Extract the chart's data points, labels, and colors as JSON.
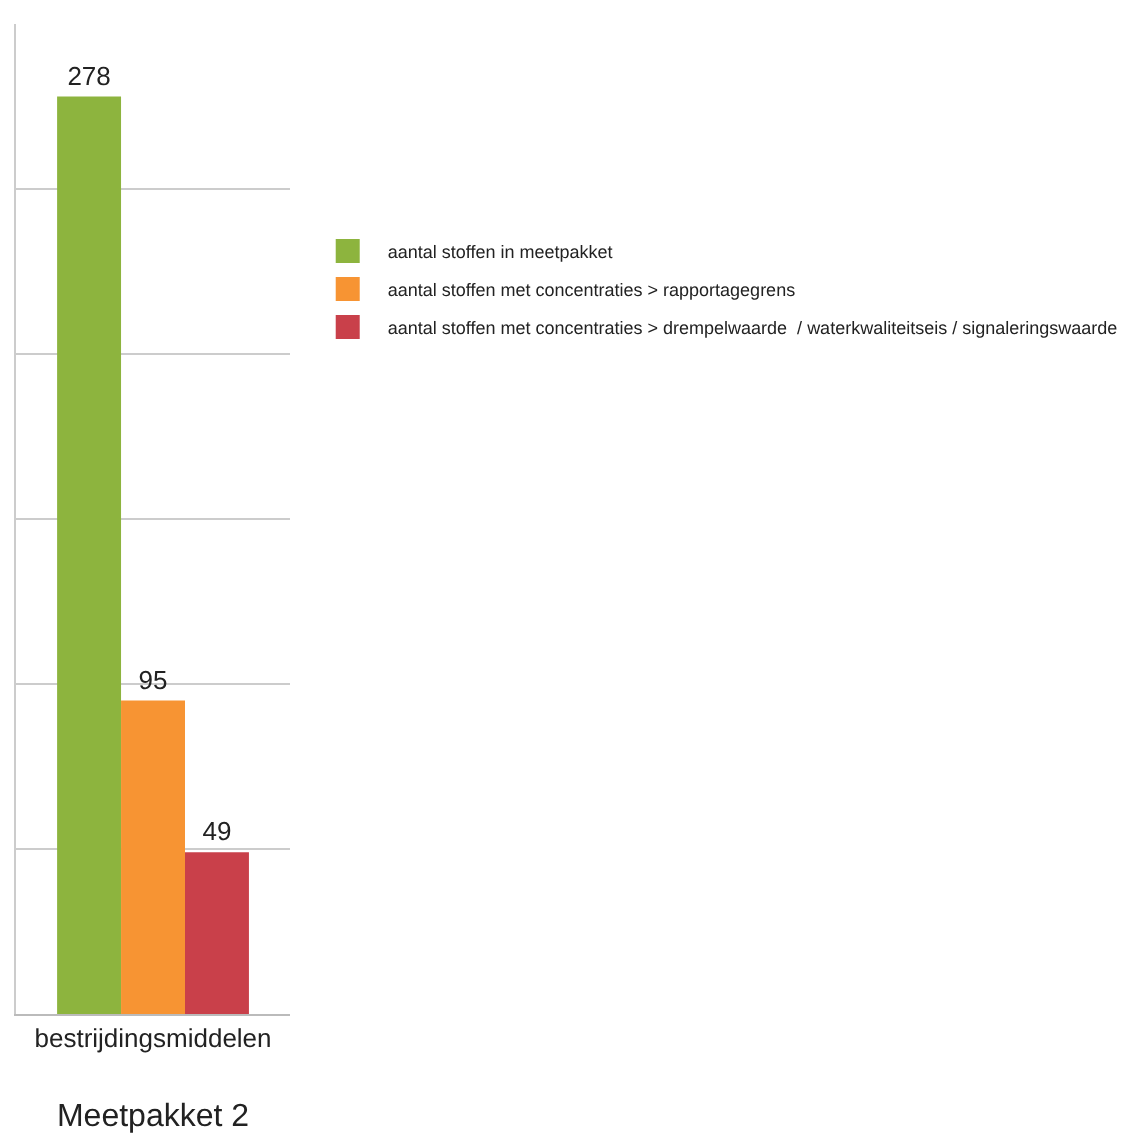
{
  "chart_data": {
    "type": "bar",
    "categories": [
      "bestrijdingsmiddelen"
    ],
    "xlabel": "Meetpakket 2",
    "series": [
      {
        "name": "aantal stoffen in meetpakket",
        "color": "#8db43e",
        "values": [
          278
        ]
      },
      {
        "name": "aantal stoffen met concentraties > rapportagegrens",
        "color": "#f79433",
        "values": [
          95
        ]
      },
      {
        "name": "aantal stoffen met concentraties > drempelwaarde  / waterkwaliteitseis / signaleringswaarde",
        "color": "#c9404a",
        "values": [
          49
        ]
      }
    ],
    "ylim": [
      0,
      300
    ],
    "yticks": [
      {
        "value": 0,
        "label": null
      },
      {
        "value": 50,
        "label": null
      },
      {
        "value": 100,
        "label": null
      },
      {
        "value": 150,
        "label": null
      },
      {
        "value": 200,
        "label": null
      },
      {
        "value": 250,
        "label": null
      }
    ],
    "grid": "y",
    "legend": "right",
    "tick_labels": "x",
    "data_labels": true
  }
}
